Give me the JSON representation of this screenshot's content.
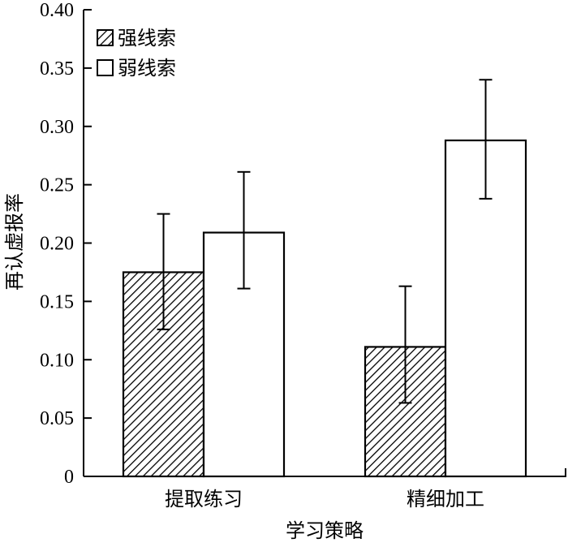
{
  "chart_data": {
    "type": "bar",
    "title": "",
    "xlabel": "学习策略",
    "ylabel": "再认虚报率",
    "ylim": [
      0,
      0.4
    ],
    "yticks": [
      {
        "value": 0,
        "label": "0"
      },
      {
        "value": 0.05,
        "label": "0.05"
      },
      {
        "value": 0.1,
        "label": "0.10"
      },
      {
        "value": 0.15,
        "label": "0.15"
      },
      {
        "value": 0.2,
        "label": "0.20"
      },
      {
        "value": 0.25,
        "label": "0.25"
      },
      {
        "value": 0.3,
        "label": "0.30"
      },
      {
        "value": 0.35,
        "label": "0.35"
      },
      {
        "value": 0.4,
        "label": "0.40"
      }
    ],
    "categories": [
      "提取练习",
      "精细加工"
    ],
    "series": [
      {
        "name": "强线索",
        "fill": "hatched",
        "values": [
          0.175,
          0.111
        ],
        "error_low": [
          0.126,
          0.063
        ],
        "error_high": [
          0.225,
          0.163
        ]
      },
      {
        "name": "弱线索",
        "fill": "white",
        "values": [
          0.209,
          0.288
        ],
        "error_low": [
          0.161,
          0.238
        ],
        "error_high": [
          0.261,
          0.34
        ]
      }
    ],
    "grid": false,
    "legend_position": "top-left",
    "colors": {
      "axis": "#000000",
      "bar_edge": "#000000",
      "hatch": "#000000",
      "background": "#ffffff"
    }
  }
}
